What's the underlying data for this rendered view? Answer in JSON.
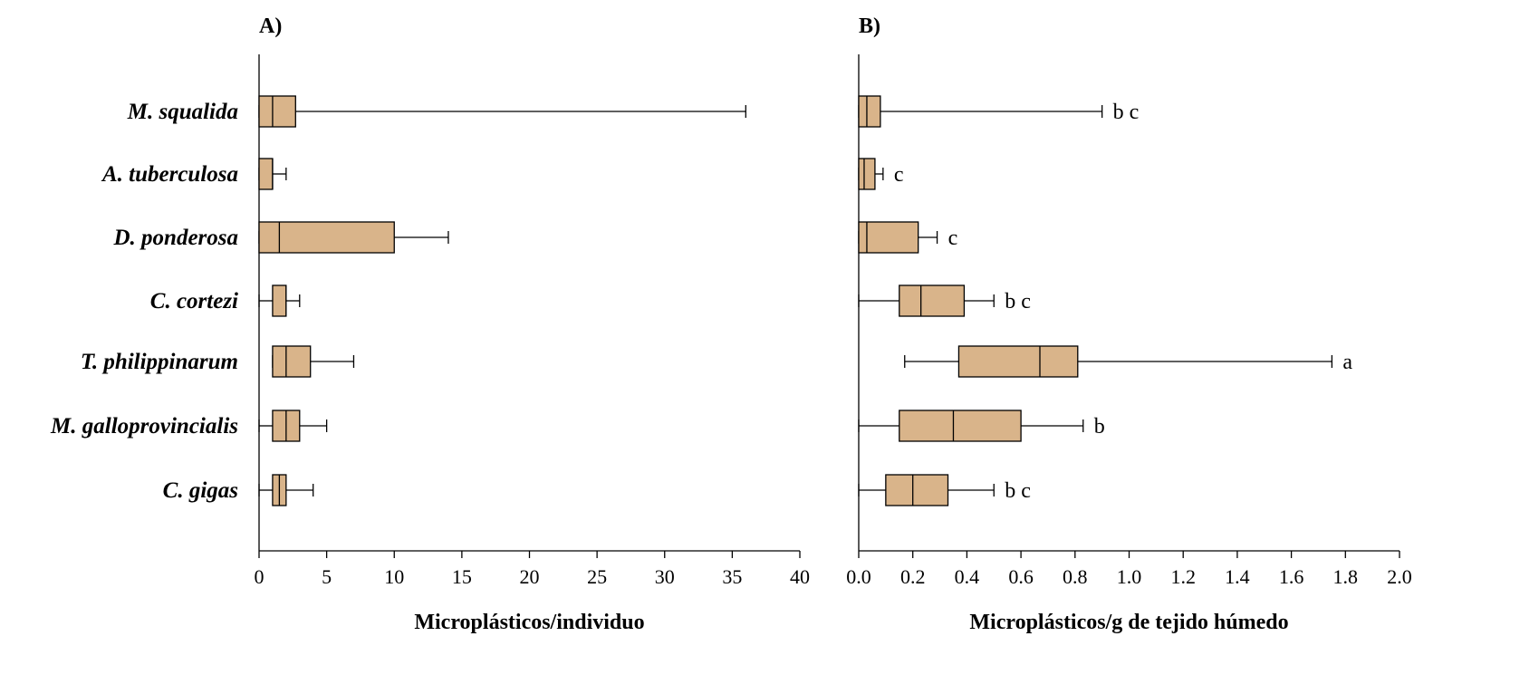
{
  "chart_data": [
    {
      "type": "boxplot",
      "panel_label": "A)",
      "xlabel": "Microplásticos/individuo",
      "xlim": [
        0,
        40
      ],
      "xticks": [
        "0",
        "5",
        "10",
        "15",
        "20",
        "25",
        "30",
        "35",
        "40"
      ],
      "categories": [
        "M. squalida",
        "A. tuberculosa",
        "D. ponderosa",
        "C. cortezi",
        "T. philippinarum",
        "M. galloprovincialis",
        "C. gigas"
      ],
      "boxes": [
        {
          "min": 0,
          "q1": 0,
          "median": 1,
          "q3": 2.7,
          "max": 36
        },
        {
          "min": 0,
          "q1": 0,
          "median": 1,
          "q3": 1,
          "max": 2
        },
        {
          "min": 0,
          "q1": 0,
          "median": 1.5,
          "q3": 10,
          "max": 14
        },
        {
          "min": 0,
          "q1": 1,
          "median": 2,
          "q3": 2,
          "max": 3
        },
        {
          "min": 1,
          "q1": 1,
          "median": 2,
          "q3": 3.8,
          "max": 7
        },
        {
          "min": 0,
          "q1": 1,
          "median": 2,
          "q3": 3,
          "max": 5
        },
        {
          "min": 0,
          "q1": 1,
          "median": 1.5,
          "q3": 2,
          "max": 4
        }
      ]
    },
    {
      "type": "boxplot",
      "panel_label": "B)",
      "xlabel": "Microplásticos/g de tejido húmedo",
      "xlim": [
        0,
        2
      ],
      "xticks": [
        "0.0",
        "0.2",
        "0.4",
        "0.6",
        "0.8",
        "1.0",
        "1.2",
        "1.4",
        "1.6",
        "1.8",
        "2.0"
      ],
      "categories": [
        "M. squalida",
        "A. tuberculosa",
        "D. ponderosa",
        "C. cortezi",
        "T. philippinarum",
        "M. galloprovincialis",
        "C. gigas"
      ],
      "boxes": [
        {
          "min": 0,
          "q1": 0,
          "median": 0.03,
          "q3": 0.08,
          "max": 0.9,
          "group": "b c"
        },
        {
          "min": 0,
          "q1": 0,
          "median": 0.02,
          "q3": 0.06,
          "max": 0.09,
          "group": "c"
        },
        {
          "min": 0,
          "q1": 0,
          "median": 0.03,
          "q3": 0.22,
          "max": 0.29,
          "group": "c"
        },
        {
          "min": 0,
          "q1": 0.15,
          "median": 0.23,
          "q3": 0.39,
          "max": 0.5,
          "group": "b c"
        },
        {
          "min": 0.17,
          "q1": 0.37,
          "median": 0.67,
          "q3": 0.81,
          "max": 1.75,
          "group": "a"
        },
        {
          "min": 0,
          "q1": 0.15,
          "median": 0.35,
          "q3": 0.6,
          "max": 0.83,
          "group": "b"
        },
        {
          "min": 0,
          "q1": 0.1,
          "median": 0.2,
          "q3": 0.33,
          "max": 0.5,
          "group": "b c"
        }
      ]
    }
  ]
}
